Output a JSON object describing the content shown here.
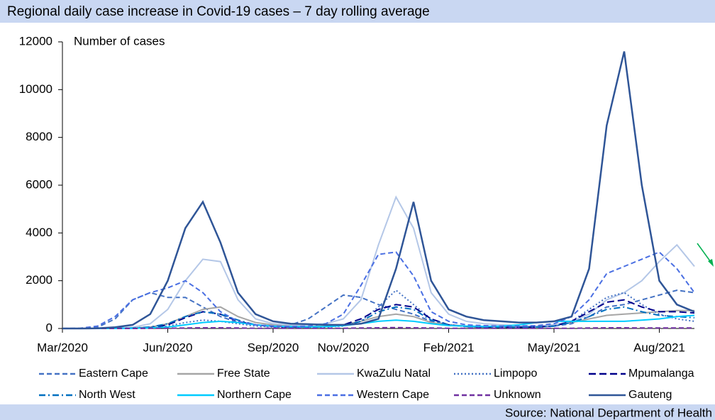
{
  "chart_data": {
    "type": "line",
    "title": "Regional daily case increase in Covid-19 cases – 7 day rolling average",
    "y_label": "Number of cases",
    "source": "Source: National Department of Health",
    "categories": [
      "Mar/2020",
      null,
      null,
      null,
      null,
      null,
      "Jun/2020",
      null,
      null,
      null,
      null,
      null,
      "Sep/2020",
      null,
      null,
      null,
      "Nov/2020",
      null,
      null,
      null,
      null,
      null,
      "Feb/2021",
      null,
      null,
      null,
      null,
      null,
      "May/2021",
      null,
      null,
      null,
      null,
      null,
      "Aug/2021",
      null,
      null
    ],
    "ylim": [
      0,
      12000
    ],
    "yticks": [
      0,
      2000,
      4000,
      6000,
      8000,
      10000,
      12000
    ],
    "series": [
      {
        "name": "Eastern Cape",
        "color": "#4472c4",
        "dash": "dashed",
        "values": [
          0,
          0,
          50,
          400,
          1200,
          1500,
          1300,
          1300,
          900,
          500,
          250,
          150,
          100,
          150,
          400,
          900,
          1400,
          1300,
          1000,
          800,
          600,
          300,
          150,
          100,
          80,
          70,
          60,
          70,
          100,
          200,
          500,
          900,
          1000,
          1200,
          1400,
          1600,
          1500
        ]
      },
      {
        "name": "Free State",
        "color": "#a6a6a6",
        "dash": "solid",
        "values": [
          0,
          0,
          0,
          5,
          20,
          60,
          200,
          500,
          800,
          900,
          500,
          250,
          150,
          100,
          80,
          100,
          150,
          300,
          500,
          600,
          500,
          250,
          150,
          100,
          80,
          70,
          70,
          90,
          150,
          250,
          400,
          550,
          600,
          650,
          700,
          750,
          750
        ]
      },
      {
        "name": "KwaZulu Natal",
        "color": "#b4c7e7",
        "dash": "solid",
        "values": [
          0,
          0,
          0,
          10,
          50,
          200,
          800,
          2000,
          2900,
          2800,
          1200,
          400,
          200,
          150,
          150,
          200,
          400,
          1200,
          3500,
          5500,
          4200,
          1500,
          600,
          300,
          200,
          150,
          120,
          100,
          150,
          300,
          600,
          1200,
          1500,
          2000,
          2800,
          3500,
          2600
        ]
      },
      {
        "name": "Limpopo",
        "color": "#4472c4",
        "dash": "dotted",
        "values": [
          0,
          0,
          0,
          5,
          10,
          30,
          100,
          250,
          350,
          300,
          200,
          100,
          60,
          50,
          50,
          60,
          100,
          300,
          900,
          1600,
          1000,
          400,
          150,
          80,
          60,
          50,
          50,
          60,
          100,
          300,
          800,
          1300,
          1500,
          1000,
          600,
          400,
          300
        ]
      },
      {
        "name": "Mpumalanga",
        "color": "#00008b",
        "dash": "longdash",
        "values": [
          0,
          0,
          0,
          5,
          10,
          30,
          150,
          450,
          700,
          600,
          300,
          150,
          80,
          60,
          60,
          80,
          150,
          400,
          800,
          1000,
          900,
          400,
          150,
          80,
          60,
          50,
          50,
          60,
          100,
          300,
          700,
          1100,
          1200,
          900,
          700,
          700,
          650
        ]
      },
      {
        "name": "North West",
        "color": "#0070c0",
        "dash": "dashdot",
        "values": [
          0,
          0,
          0,
          5,
          20,
          60,
          200,
          500,
          700,
          600,
          350,
          150,
          80,
          60,
          60,
          70,
          120,
          300,
          700,
          900,
          800,
          350,
          150,
          80,
          60,
          50,
          50,
          60,
          100,
          250,
          500,
          800,
          900,
          700,
          550,
          500,
          450
        ]
      },
      {
        "name": "Northern Cape",
        "color": "#00ccff",
        "dash": "solid",
        "values": [
          0,
          0,
          0,
          0,
          5,
          20,
          60,
          150,
          250,
          300,
          250,
          150,
          100,
          80,
          70,
          80,
          120,
          200,
          300,
          350,
          300,
          200,
          120,
          100,
          90,
          100,
          150,
          250,
          300,
          300,
          300,
          300,
          300,
          350,
          400,
          500,
          550
        ]
      },
      {
        "name": "Western Cape",
        "color": "#4a6fe3",
        "dash": "dashed",
        "values": [
          0,
          10,
          100,
          500,
          1200,
          1500,
          1700,
          2000,
          1500,
          700,
          300,
          150,
          100,
          80,
          100,
          200,
          600,
          1800,
          3100,
          3200,
          2200,
          700,
          300,
          150,
          120,
          100,
          100,
          120,
          200,
          500,
          1200,
          2300,
          2600,
          2900,
          3200,
          2500,
          1500
        ]
      },
      {
        "name": "Unknown",
        "color": "#7030a0",
        "dash": "dashed",
        "values": [
          0,
          0,
          0,
          0,
          0,
          5,
          10,
          20,
          30,
          30,
          20,
          10,
          10,
          10,
          10,
          10,
          10,
          20,
          30,
          40,
          30,
          20,
          10,
          10,
          10,
          10,
          10,
          10,
          10,
          10,
          20,
          30,
          30,
          20,
          20,
          20,
          20
        ]
      },
      {
        "name": "Gauteng",
        "color": "#2f5597",
        "dash": "solid",
        "values": [
          0,
          0,
          10,
          50,
          150,
          600,
          2000,
          4200,
          5300,
          3600,
          1500,
          600,
          300,
          200,
          180,
          150,
          150,
          200,
          400,
          2500,
          5300,
          2000,
          800,
          500,
          350,
          300,
          250,
          250,
          300,
          500,
          2500,
          8500,
          11600,
          6000,
          2000,
          1000,
          700
        ]
      }
    ]
  }
}
